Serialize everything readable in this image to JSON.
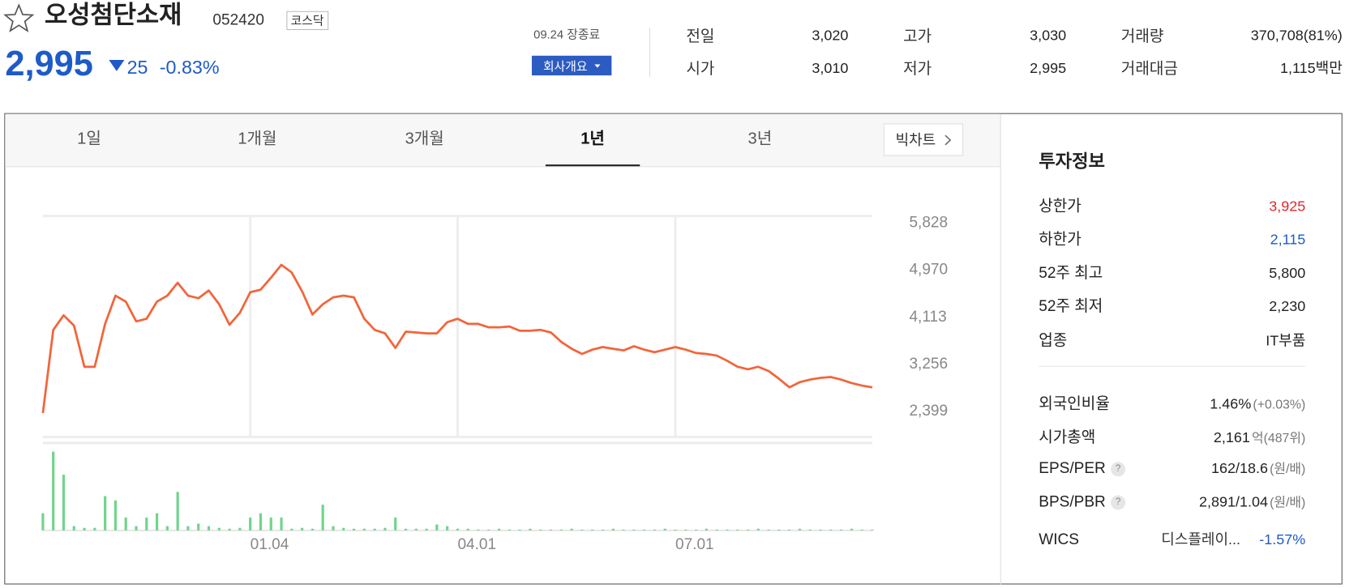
{
  "header": {
    "name": "오성첨단소재",
    "code": "052420",
    "market": "코스닥",
    "price": "2,995",
    "change": "25",
    "change_pct": "-0.83%",
    "date": "09.24 장종료",
    "company_button": "회사개요"
  },
  "stats": [
    {
      "label": "전일",
      "value": "3,020"
    },
    {
      "label": "고가",
      "value": "3,030"
    },
    {
      "label": "거래량",
      "value": "370,708(81%)"
    },
    {
      "label": "시가",
      "value": "3,010"
    },
    {
      "label": "저가",
      "value": "2,995"
    },
    {
      "label": "거래대금",
      "value": "1,115백만"
    }
  ],
  "tabs": [
    "1일",
    "1개월",
    "3개월",
    "1년",
    "3년"
  ],
  "big_chart": "빅차트",
  "chart_data": {
    "type": "line",
    "categories": [
      null,
      null,
      null,
      null,
      null,
      null,
      null,
      null,
      null,
      null,
      null,
      null,
      null,
      null,
      null,
      null,
      null,
      null,
      null,
      null,
      "01.04",
      null,
      null,
      null,
      null,
      null,
      null,
      null,
      null,
      null,
      null,
      null,
      null,
      null,
      null,
      null,
      null,
      null,
      null,
      null,
      "04.01",
      null,
      null,
      null,
      null,
      null,
      null,
      null,
      null,
      null,
      null,
      null,
      null,
      null,
      null,
      null,
      null,
      null,
      null,
      null,
      null,
      "07.01",
      null,
      null,
      null,
      null,
      null,
      null,
      null,
      null,
      null,
      null,
      null,
      null,
      null,
      null,
      null,
      null,
      null,
      null,
      null
    ],
    "series": [
      {
        "color": "#f2653a",
        "values": [
          2337,
          3849,
          4114,
          3927,
          3178,
          3178,
          3958,
          4472,
          4363,
          4004,
          4051,
          4363,
          4472,
          4706,
          4472,
          4425,
          4566,
          4316,
          3942,
          4160,
          4534,
          4581,
          4799,
          5033,
          4893,
          4550,
          4129,
          4316,
          4441,
          4472,
          4441,
          4051,
          3849,
          3786,
          3521,
          3817,
          3802,
          3786,
          3786,
          3989,
          4051,
          3958,
          3958,
          3895,
          3895,
          3911,
          3833,
          3833,
          3849,
          3802,
          3630,
          3506,
          3412,
          3490,
          3537,
          3506,
          3475,
          3552,
          3490,
          3443,
          3490,
          3537,
          3490,
          3428,
          3412,
          3381,
          3287,
          3178,
          3132,
          3178,
          3100,
          2960,
          2804,
          2898,
          2945,
          2976,
          2991,
          2945,
          2882,
          2836,
          2804
        ]
      }
    ],
    "volume": {
      "color": "#6fd58a",
      "values": [
        20,
        92,
        65,
        5,
        3,
        3,
        40,
        35,
        15,
        5,
        15,
        20,
        5,
        45,
        5,
        8,
        5,
        3,
        2,
        3,
        15,
        20,
        15,
        15,
        2,
        3,
        2,
        30,
        5,
        3,
        2,
        2,
        2,
        3,
        15,
        2,
        2,
        2,
        7,
        5,
        2,
        2,
        1,
        1,
        2,
        1,
        1,
        2,
        1,
        1,
        1,
        2,
        1,
        1,
        1,
        2,
        1,
        1,
        1,
        1,
        2,
        1,
        1,
        1,
        2,
        1,
        1,
        1,
        1,
        2,
        1,
        1,
        1,
        2,
        1,
        1,
        1,
        1,
        2,
        1,
        1
      ],
      "ylim": [
        0,
        100
      ]
    },
    "ylim": [
      1900,
      5922
    ],
    "yticks": [
      {
        "value": 5828,
        "label": "5,828"
      },
      {
        "value": 4970,
        "label": "4,970"
      },
      {
        "value": 4113,
        "label": "4,113"
      },
      {
        "value": 3256,
        "label": "3,256"
      },
      {
        "value": 2399,
        "label": "2,399"
      }
    ]
  },
  "invest": {
    "title": "투자정보",
    "rows": [
      {
        "label": "상한가",
        "value": "3,925"
      },
      {
        "label": "하한가",
        "value": "2,115"
      },
      {
        "label": "52주 최고",
        "value": "5,800"
      },
      {
        "label": "52주 최저",
        "value": "2,230"
      },
      {
        "label": "업종",
        "value": "IT부품"
      },
      {
        "label": "외국인비율",
        "value": "1.46%",
        "extra": "(+0.03%)"
      },
      {
        "label": "시가총액",
        "value": "2,161",
        "extra": "억(487위)"
      },
      {
        "label": "EPS/PER",
        "value": "162/18.6",
        "extra": "(원/배)"
      },
      {
        "label": "BPS/PBR",
        "value": "2,891/1.04",
        "extra": "(원/배)"
      },
      {
        "label": "WICS",
        "value": "디스플레이...",
        "extra": "-1.57%"
      }
    ]
  }
}
